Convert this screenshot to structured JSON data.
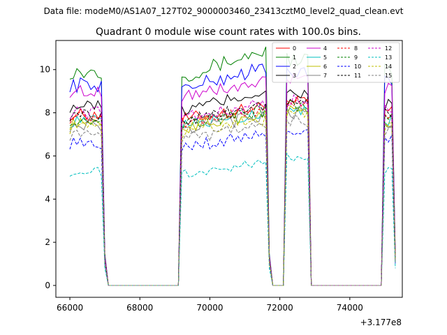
{
  "header_text": "Data file: modeM0/AS1A07_127T02_9000003460_23413cztM0_level2_quad_clean.evt",
  "chart_data": {
    "type": "line",
    "title": "Quadrant 0 module wise count rates with 100.0s bins.",
    "xlabel": "",
    "ylabel": "",
    "x_offset_label": "+3.177e8",
    "xlim": [
      65600,
      75500
    ],
    "ylim": [
      -0.55,
      11.35
    ],
    "x_ticks": [
      66000,
      68000,
      70000,
      72000,
      74000
    ],
    "y_ticks": [
      0,
      2,
      4,
      6,
      8,
      10
    ],
    "grid": false,
    "legend_placement": "top-right",
    "segments": [
      {
        "x_start": 66000,
        "x_end": 66900
      },
      {
        "x_start": 69200,
        "x_end": 71600
      },
      {
        "x_start": 72200,
        "x_end": 72800
      },
      {
        "x_start": 75000,
        "x_end": 75200
      }
    ],
    "gap_ranges": [
      [
        67100,
        69100
      ],
      [
        71800,
        72100
      ],
      [
        72900,
        74900
      ]
    ],
    "series": [
      {
        "name": "0",
        "color": "#ff0000",
        "dash": "solid",
        "level": 7.9,
        "amp": 0.3,
        "ramp": 0.6
      },
      {
        "name": "1",
        "color": "#008000",
        "dash": "solid",
        "level": 9.9,
        "amp": 0.35,
        "ramp": 1.2
      },
      {
        "name": "2",
        "color": "#0000ff",
        "dash": "solid",
        "level": 9.3,
        "amp": 0.35,
        "ramp": 1.0
      },
      {
        "name": "3",
        "color": "#000000",
        "dash": "solid",
        "level": 8.3,
        "amp": 0.3,
        "ramp": 0.9
      },
      {
        "name": "4",
        "color": "#cc00cc",
        "dash": "solid",
        "level": 9.0,
        "amp": 0.3,
        "ramp": 0.6
      },
      {
        "name": "5",
        "color": "#00bfbf",
        "dash": "solid",
        "level": 7.6,
        "amp": 0.3,
        "ramp": 0.6
      },
      {
        "name": "6",
        "color": "#bfbf00",
        "dash": "solid",
        "level": 7.5,
        "amp": 0.3,
        "ramp": 0.7
      },
      {
        "name": "7",
        "color": "#808080",
        "dash": "solid",
        "level": 7.4,
        "amp": 0.3,
        "ramp": 0.7
      },
      {
        "name": "8",
        "color": "#ff0000",
        "dash": "dashed",
        "level": 7.8,
        "amp": 0.3,
        "ramp": 0.6
      },
      {
        "name": "9",
        "color": "#008000",
        "dash": "dashed",
        "level": 7.7,
        "amp": 0.3,
        "ramp": 0.6
      },
      {
        "name": "10",
        "color": "#0000ff",
        "dash": "dashed",
        "level": 6.6,
        "amp": 0.3,
        "ramp": 0.6
      },
      {
        "name": "11",
        "color": "#000000",
        "dash": "dashed",
        "level": 7.9,
        "amp": 0.3,
        "ramp": 0.6
      },
      {
        "name": "12",
        "color": "#cc00cc",
        "dash": "dashed",
        "level": 8.0,
        "amp": 0.3,
        "ramp": 0.6
      },
      {
        "name": "13",
        "color": "#00bfbf",
        "dash": "dashed",
        "level": 5.3,
        "amp": 0.25,
        "ramp": 0.6
      },
      {
        "name": "14",
        "color": "#bfbf00",
        "dash": "dashed",
        "level": 7.3,
        "amp": 0.3,
        "ramp": 0.6
      },
      {
        "name": "15",
        "color": "#808080",
        "dash": "dashed",
        "level": 7.0,
        "amp": 0.3,
        "ramp": 0.6
      }
    ]
  }
}
